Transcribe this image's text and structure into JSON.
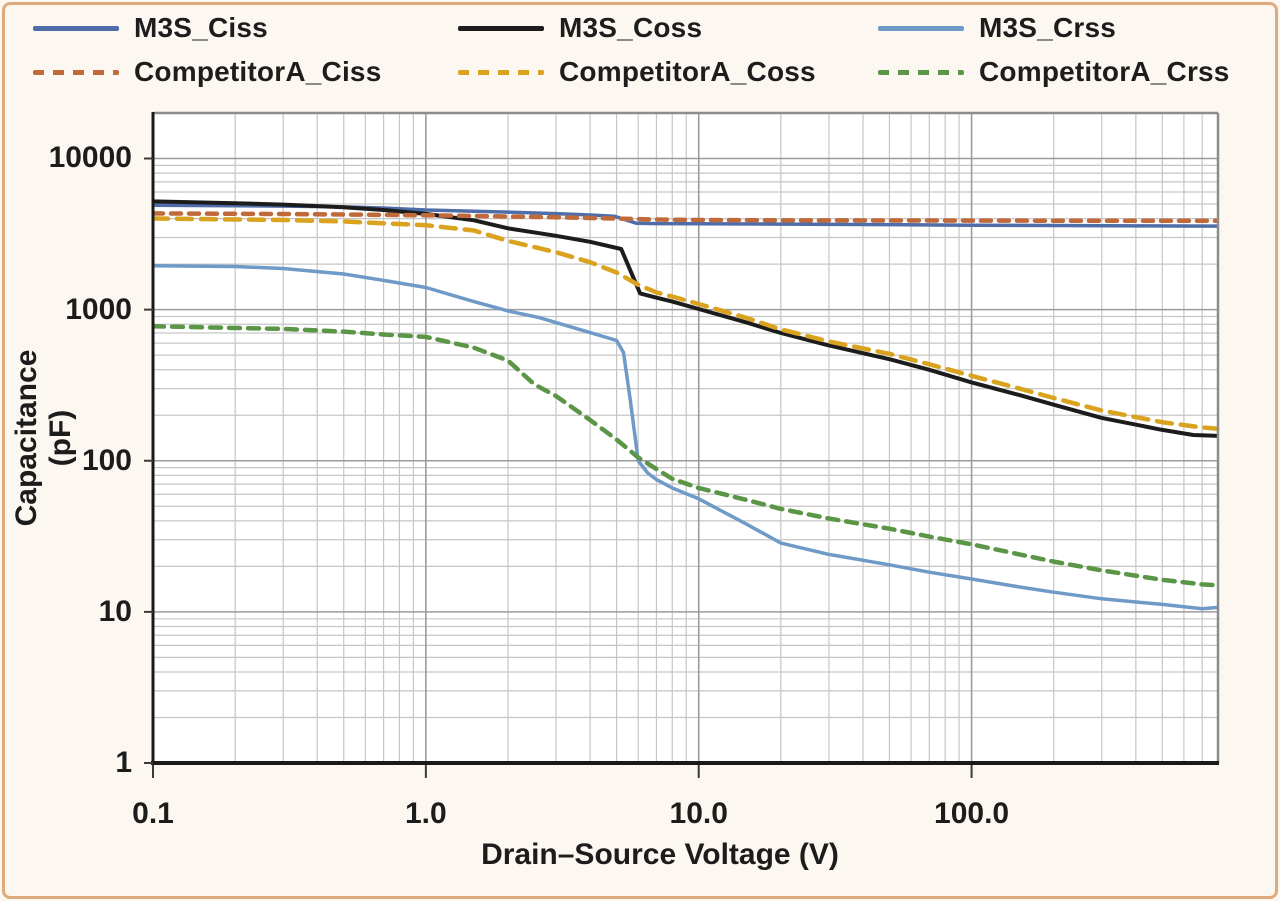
{
  "page": {
    "background_color": "#fcf8f1",
    "frame_border_color": "#dfab7e",
    "plot_background_color": "#ffffff"
  },
  "legend": {
    "position": "top",
    "items": [
      {
        "label": "M3S_Ciss",
        "color": "#4f6da8",
        "line_style": "solid"
      },
      {
        "label": "M3S_Coss",
        "color": "#1c1c1c",
        "line_style": "solid"
      },
      {
        "label": "M3S_Crss",
        "color": "#6f99c7",
        "line_style": "solid"
      },
      {
        "label": "CompetitorA_Ciss",
        "color": "#c06a3c",
        "line_style": "dashed"
      },
      {
        "label": "CompetitorA_Coss",
        "color": "#d9a31f",
        "line_style": "dashed"
      },
      {
        "label": "CompetitorA_Crss",
        "color": "#5a9646",
        "line_style": "dashed"
      }
    ]
  },
  "chart_data": {
    "type": "line",
    "title": "",
    "xlabel": "Drain–Source Voltage (V)",
    "ylabel": "Capacitance (pF)",
    "x_scale": "log",
    "y_scale": "log",
    "xlim": [
      0.1,
      800
    ],
    "ylim": [
      1,
      20000
    ],
    "grid": "log major and minor gridlines",
    "legend_position": "top",
    "x_ticks": [
      {
        "value": 0.1,
        "label": "0.1"
      },
      {
        "value": 1,
        "label": "1.0"
      },
      {
        "value": 10,
        "label": "10.0"
      },
      {
        "value": 100,
        "label": "100.0"
      }
    ],
    "y_ticks": [
      {
        "value": 10000,
        "label": "10000"
      },
      {
        "value": 1000,
        "label": "1000"
      },
      {
        "value": 100,
        "label": "100"
      },
      {
        "value": 10,
        "label": "10"
      },
      {
        "value": 1,
        "label": "1"
      }
    ],
    "series": [
      {
        "name": "M3S_Ciss",
        "color": "#4f6da8",
        "line_style": "solid",
        "stroke_width": 3.5,
        "dash": "",
        "points": [
          [
            0.1,
            4900
          ],
          [
            0.2,
            4870
          ],
          [
            0.3,
            4840
          ],
          [
            0.5,
            4780
          ],
          [
            0.7,
            4700
          ],
          [
            1,
            4560
          ],
          [
            1.5,
            4480
          ],
          [
            2,
            4420
          ],
          [
            3,
            4320
          ],
          [
            4,
            4230
          ],
          [
            4.9,
            4150
          ],
          [
            5.9,
            3730
          ],
          [
            7,
            3710
          ],
          [
            10,
            3700
          ],
          [
            20,
            3680
          ],
          [
            50,
            3650
          ],
          [
            100,
            3620
          ],
          [
            200,
            3600
          ],
          [
            400,
            3580
          ],
          [
            800,
            3570
          ]
        ]
      },
      {
        "name": "M3S_Coss",
        "color": "#1c1c1c",
        "line_style": "solid",
        "stroke_width": 4,
        "dash": "",
        "points": [
          [
            0.1,
            5200
          ],
          [
            0.2,
            5060
          ],
          [
            0.3,
            4950
          ],
          [
            0.5,
            4760
          ],
          [
            0.7,
            4560
          ],
          [
            1,
            4300
          ],
          [
            1.5,
            3900
          ],
          [
            2,
            3450
          ],
          [
            3,
            3080
          ],
          [
            4,
            2810
          ],
          [
            5.2,
            2520
          ],
          [
            6.1,
            1280
          ],
          [
            7,
            1200
          ],
          [
            8,
            1130
          ],
          [
            10,
            1010
          ],
          [
            15,
            820
          ],
          [
            20,
            700
          ],
          [
            30,
            580
          ],
          [
            50,
            470
          ],
          [
            70,
            400
          ],
          [
            100,
            330
          ],
          [
            150,
            272
          ],
          [
            200,
            235
          ],
          [
            300,
            192
          ],
          [
            500,
            160
          ],
          [
            650,
            148
          ],
          [
            800,
            146
          ]
        ]
      },
      {
        "name": "M3S_Crss",
        "color": "#6f99c7",
        "line_style": "solid",
        "stroke_width": 3.5,
        "dash": "",
        "points": [
          [
            0.1,
            1950
          ],
          [
            0.2,
            1930
          ],
          [
            0.3,
            1870
          ],
          [
            0.5,
            1720
          ],
          [
            0.7,
            1560
          ],
          [
            1,
            1400
          ],
          [
            1.5,
            1130
          ],
          [
            2,
            980
          ],
          [
            2.6,
            885
          ],
          [
            3,
            820
          ],
          [
            4,
            705
          ],
          [
            5,
            625
          ],
          [
            5.3,
            520
          ],
          [
            5.6,
            260
          ],
          [
            6,
            100
          ],
          [
            6.5,
            83
          ],
          [
            7,
            75
          ],
          [
            8,
            66
          ],
          [
            10,
            56
          ],
          [
            15,
            38
          ],
          [
            20,
            28.5
          ],
          [
            30,
            24
          ],
          [
            50,
            20.5
          ],
          [
            70,
            18.3
          ],
          [
            100,
            16.5
          ],
          [
            150,
            14.6
          ],
          [
            200,
            13.5
          ],
          [
            300,
            12.2
          ],
          [
            500,
            11.2
          ],
          [
            600,
            10.8
          ],
          [
            700,
            10.5
          ],
          [
            800,
            10.7
          ]
        ]
      },
      {
        "name": "CompetitorA_Ciss",
        "color": "#c06a3c",
        "line_style": "dashed",
        "stroke_width": 4.5,
        "dash": "10 8",
        "points": [
          [
            0.1,
            4330
          ],
          [
            0.3,
            4290
          ],
          [
            0.5,
            4260
          ],
          [
            1,
            4210
          ],
          [
            2,
            4130
          ],
          [
            3,
            4080
          ],
          [
            5,
            4000
          ],
          [
            7,
            3950
          ],
          [
            10,
            3920
          ],
          [
            20,
            3900
          ],
          [
            50,
            3890
          ],
          [
            100,
            3880
          ],
          [
            300,
            3870
          ],
          [
            800,
            3870
          ]
        ]
      },
      {
        "name": "CompetitorA_Coss",
        "color": "#d9a31f",
        "line_style": "dashed",
        "stroke_width": 4.5,
        "dash": "15 9",
        "points": [
          [
            0.1,
            4010
          ],
          [
            0.3,
            3920
          ],
          [
            0.5,
            3830
          ],
          [
            1,
            3620
          ],
          [
            1.5,
            3340
          ],
          [
            2,
            2850
          ],
          [
            3,
            2400
          ],
          [
            4,
            2060
          ],
          [
            5,
            1760
          ],
          [
            6,
            1460
          ],
          [
            7,
            1300
          ],
          [
            8,
            1220
          ],
          [
            10,
            1090
          ],
          [
            15,
            880
          ],
          [
            20,
            740
          ],
          [
            30,
            615
          ],
          [
            50,
            510
          ],
          [
            70,
            435
          ],
          [
            100,
            365
          ],
          [
            150,
            300
          ],
          [
            200,
            260
          ],
          [
            300,
            215
          ],
          [
            500,
            180
          ],
          [
            700,
            166
          ],
          [
            800,
            163
          ]
        ]
      },
      {
        "name": "CompetitorA_Crss",
        "color": "#5a9646",
        "line_style": "dashed",
        "stroke_width": 4.5,
        "dash": "11 8",
        "points": [
          [
            0.1,
            775
          ],
          [
            0.3,
            745
          ],
          [
            0.5,
            715
          ],
          [
            0.7,
            685
          ],
          [
            1,
            660
          ],
          [
            1.5,
            560
          ],
          [
            2,
            460
          ],
          [
            2.5,
            320
          ],
          [
            3,
            268
          ],
          [
            4,
            186
          ],
          [
            5,
            138
          ],
          [
            6,
            105
          ],
          [
            7,
            88
          ],
          [
            8,
            76
          ],
          [
            10,
            66
          ],
          [
            15,
            55
          ],
          [
            20,
            48
          ],
          [
            30,
            41.5
          ],
          [
            50,
            35.5
          ],
          [
            70,
            31.5
          ],
          [
            100,
            28
          ],
          [
            150,
            24
          ],
          [
            200,
            21.5
          ],
          [
            300,
            18.8
          ],
          [
            500,
            16.3
          ],
          [
            700,
            15.2
          ],
          [
            800,
            15
          ]
        ]
      }
    ]
  }
}
